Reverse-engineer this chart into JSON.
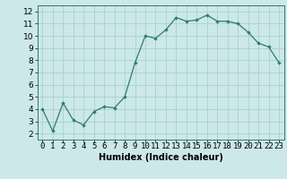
{
  "x": [
    0,
    1,
    2,
    3,
    4,
    5,
    6,
    7,
    8,
    9,
    10,
    11,
    12,
    13,
    14,
    15,
    16,
    17,
    18,
    19,
    20,
    21,
    22,
    23
  ],
  "y": [
    4.0,
    2.2,
    4.5,
    3.1,
    2.7,
    3.8,
    4.2,
    4.1,
    5.0,
    7.8,
    10.0,
    9.8,
    10.5,
    11.5,
    11.2,
    11.3,
    11.7,
    11.2,
    11.2,
    11.0,
    10.3,
    9.4,
    9.1,
    7.8
  ],
  "line_color": "#2e7d6e",
  "marker": "D",
  "marker_size": 1.8,
  "bg_color": "#cce8e8",
  "grid_color": "#aad0d0",
  "xlabel": "Humidex (Indice chaleur)",
  "xlim": [
    -0.5,
    23.5
  ],
  "ylim": [
    1.5,
    12.5
  ],
  "yticks": [
    2,
    3,
    4,
    5,
    6,
    7,
    8,
    9,
    10,
    11,
    12
  ],
  "xticks": [
    0,
    1,
    2,
    3,
    4,
    5,
    6,
    7,
    8,
    9,
    10,
    11,
    12,
    13,
    14,
    15,
    16,
    17,
    18,
    19,
    20,
    21,
    22,
    23
  ],
  "xlabel_fontsize": 7,
  "tick_fontsize": 6.5,
  "spine_color": "#2e7d6e",
  "linewidth": 0.9
}
